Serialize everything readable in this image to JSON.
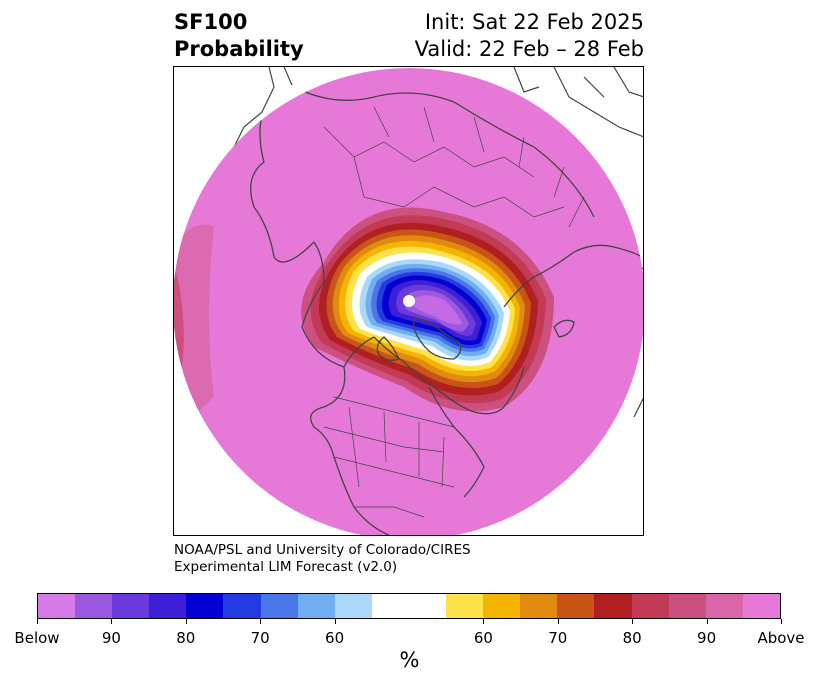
{
  "header": {
    "variable": "SF100",
    "product": "Probability",
    "init": "Init: Sat 22 Feb 2025",
    "valid": "Valid: 22 Feb – 28 Feb"
  },
  "credit": {
    "line1": "NOAA/PSL and University of Colorado/CIRES",
    "line2": "Experimental LIM Forecast (v2.0)"
  },
  "colorbar": {
    "unit": "%",
    "colors": [
      "#d67ae8",
      "#9b59e0",
      "#6a3adb",
      "#3f1fd6",
      "#0000d1",
      "#233be0",
      "#4a76e8",
      "#70aef2",
      "#a9d8fa",
      "#ffffff",
      "#ffe24a",
      "#f5b400",
      "#e08a10",
      "#c85418",
      "#b02020",
      "#c23a55",
      "#cc5080",
      "#d966a8",
      "#e678d8"
    ],
    "tick_labels": [
      "Below",
      "90",
      "80",
      "70",
      "60",
      "60",
      "70",
      "80",
      "90",
      "Above"
    ]
  },
  "map": {
    "colors": {
      "background_fill": "#e678d8",
      "coast": "#444444"
    }
  }
}
